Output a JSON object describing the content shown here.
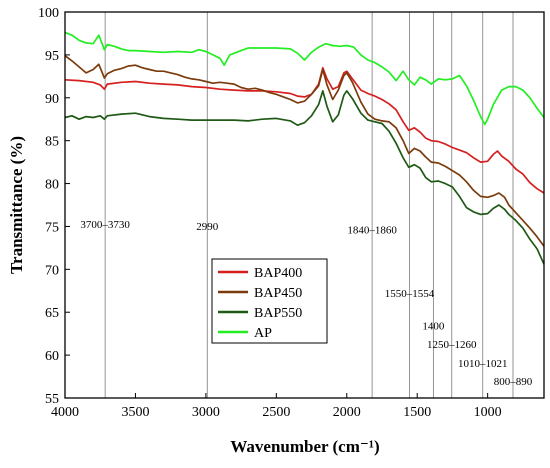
{
  "chart_data": {
    "type": "line",
    "xlabel": "Wavenumber (cm⁻¹)",
    "ylabel": "Transmittance (%)",
    "xlim": [
      4000,
      600
    ],
    "ylim": [
      55,
      100
    ],
    "x_reversed": true,
    "x_ticks": [
      4000,
      3500,
      3000,
      2500,
      2000,
      1500,
      1000
    ],
    "x_tick_labels": [
      "4000",
      "3500",
      "3000",
      "2500",
      "2000",
      "1500",
      "1000"
    ],
    "y_ticks": [
      55,
      60,
      65,
      70,
      75,
      80,
      85,
      90,
      95,
      100
    ],
    "y_tick_labels": [
      "55",
      "60",
      "65",
      "70",
      "75",
      "80",
      "85",
      "90",
      "95",
      "100"
    ],
    "grid": false,
    "legend_position": "lower-left",
    "reference_lines": [
      {
        "x": 3715,
        "label": "3700–3730",
        "label_y": 74.8
      },
      {
        "x": 2990,
        "label": "2990",
        "label_y": 74.6
      },
      {
        "x": 1820,
        "label": "1840–1860",
        "label_y": 74.2
      },
      {
        "x": 1555,
        "label": "1550–1554",
        "label_y": 66.8
      },
      {
        "x": 1385,
        "label": "1400",
        "label_y": 63.0
      },
      {
        "x": 1255,
        "label": "1250–1260",
        "label_y": 60.8
      },
      {
        "x": 1035,
        "label": "1010–1021",
        "label_y": 58.6
      },
      {
        "x": 820,
        "label": "800–890",
        "label_y": 56.5
      }
    ],
    "series": [
      {
        "name": "BAP400",
        "color": "#d62020",
        "points": [
          [
            4000,
            92.1
          ],
          [
            3900,
            92.0
          ],
          [
            3800,
            91.8
          ],
          [
            3750,
            91.5
          ],
          [
            3720,
            91.0
          ],
          [
            3700,
            91.6
          ],
          [
            3600,
            91.8
          ],
          [
            3500,
            91.9
          ],
          [
            3400,
            91.7
          ],
          [
            3300,
            91.6
          ],
          [
            3200,
            91.5
          ],
          [
            3100,
            91.3
          ],
          [
            3000,
            91.2
          ],
          [
            2900,
            91.0
          ],
          [
            2800,
            90.9
          ],
          [
            2700,
            90.8
          ],
          [
            2600,
            90.8
          ],
          [
            2500,
            90.7
          ],
          [
            2400,
            90.5
          ],
          [
            2350,
            90.2
          ],
          [
            2300,
            90.1
          ],
          [
            2250,
            90.4
          ],
          [
            2200,
            91.6
          ],
          [
            2170,
            93.5
          ],
          [
            2140,
            92.2
          ],
          [
            2100,
            91.0
          ],
          [
            2060,
            91.3
          ],
          [
            2020,
            92.9
          ],
          [
            2000,
            93.1
          ],
          [
            1960,
            92.2
          ],
          [
            1900,
            90.9
          ],
          [
            1850,
            90.5
          ],
          [
            1800,
            90.2
          ],
          [
            1750,
            89.8
          ],
          [
            1700,
            89.3
          ],
          [
            1650,
            88.6
          ],
          [
            1600,
            87.2
          ],
          [
            1560,
            86.2
          ],
          [
            1520,
            86.5
          ],
          [
            1480,
            86.0
          ],
          [
            1440,
            85.3
          ],
          [
            1400,
            85.0
          ],
          [
            1350,
            84.9
          ],
          [
            1300,
            84.6
          ],
          [
            1250,
            84.2
          ],
          [
            1200,
            83.9
          ],
          [
            1150,
            83.6
          ],
          [
            1100,
            83.0
          ],
          [
            1050,
            82.5
          ],
          [
            1000,
            82.6
          ],
          [
            960,
            83.4
          ],
          [
            930,
            83.8
          ],
          [
            900,
            83.2
          ],
          [
            850,
            82.6
          ],
          [
            800,
            81.7
          ],
          [
            750,
            81.1
          ],
          [
            700,
            80.1
          ],
          [
            650,
            79.4
          ],
          [
            600,
            78.9
          ]
        ]
      },
      {
        "name": "BAP450",
        "color": "#7b3b0c",
        "points": [
          [
            4000,
            94.9
          ],
          [
            3950,
            94.3
          ],
          [
            3900,
            93.6
          ],
          [
            3850,
            92.9
          ],
          [
            3800,
            93.3
          ],
          [
            3760,
            93.9
          ],
          [
            3720,
            92.3
          ],
          [
            3700,
            92.8
          ],
          [
            3650,
            93.2
          ],
          [
            3600,
            93.4
          ],
          [
            3550,
            93.7
          ],
          [
            3500,
            93.8
          ],
          [
            3450,
            93.5
          ],
          [
            3400,
            93.3
          ],
          [
            3350,
            93.1
          ],
          [
            3300,
            93.1
          ],
          [
            3250,
            92.9
          ],
          [
            3200,
            92.7
          ],
          [
            3150,
            92.4
          ],
          [
            3100,
            92.2
          ],
          [
            3050,
            92.1
          ],
          [
            3000,
            91.9
          ],
          [
            2950,
            91.7
          ],
          [
            2900,
            91.8
          ],
          [
            2850,
            91.7
          ],
          [
            2800,
            91.6
          ],
          [
            2750,
            91.2
          ],
          [
            2700,
            91.0
          ],
          [
            2650,
            91.1
          ],
          [
            2600,
            90.9
          ],
          [
            2550,
            90.6
          ],
          [
            2500,
            90.4
          ],
          [
            2450,
            90.1
          ],
          [
            2400,
            89.8
          ],
          [
            2350,
            89.4
          ],
          [
            2300,
            89.6
          ],
          [
            2250,
            90.4
          ],
          [
            2200,
            91.4
          ],
          [
            2170,
            93.3
          ],
          [
            2140,
            91.5
          ],
          [
            2100,
            89.8
          ],
          [
            2060,
            90.9
          ],
          [
            2020,
            92.6
          ],
          [
            2000,
            92.9
          ],
          [
            1960,
            91.8
          ],
          [
            1900,
            89.5
          ],
          [
            1850,
            88.1
          ],
          [
            1800,
            87.5
          ],
          [
            1750,
            87.3
          ],
          [
            1700,
            87.2
          ],
          [
            1650,
            86.5
          ],
          [
            1600,
            85.0
          ],
          [
            1560,
            83.5
          ],
          [
            1520,
            84.1
          ],
          [
            1480,
            83.8
          ],
          [
            1440,
            83.1
          ],
          [
            1400,
            82.5
          ],
          [
            1350,
            82.4
          ],
          [
            1300,
            82.0
          ],
          [
            1250,
            81.5
          ],
          [
            1200,
            81.0
          ],
          [
            1150,
            80.2
          ],
          [
            1100,
            79.2
          ],
          [
            1050,
            78.5
          ],
          [
            1000,
            78.4
          ],
          [
            960,
            78.6
          ],
          [
            920,
            78.9
          ],
          [
            880,
            78.4
          ],
          [
            850,
            77.5
          ],
          [
            800,
            76.6
          ],
          [
            750,
            75.7
          ],
          [
            700,
            74.8
          ],
          [
            650,
            73.8
          ],
          [
            600,
            72.7
          ]
        ]
      },
      {
        "name": "BAP550",
        "color": "#1e5a14",
        "points": [
          [
            4000,
            87.7
          ],
          [
            3950,
            87.9
          ],
          [
            3900,
            87.5
          ],
          [
            3850,
            87.8
          ],
          [
            3800,
            87.7
          ],
          [
            3750,
            87.9
          ],
          [
            3720,
            87.5
          ],
          [
            3700,
            87.9
          ],
          [
            3600,
            88.1
          ],
          [
            3500,
            88.2
          ],
          [
            3400,
            87.8
          ],
          [
            3300,
            87.6
          ],
          [
            3200,
            87.5
          ],
          [
            3100,
            87.4
          ],
          [
            3000,
            87.4
          ],
          [
            2900,
            87.4
          ],
          [
            2800,
            87.4
          ],
          [
            2700,
            87.3
          ],
          [
            2600,
            87.5
          ],
          [
            2500,
            87.6
          ],
          [
            2400,
            87.3
          ],
          [
            2350,
            86.8
          ],
          [
            2300,
            87.1
          ],
          [
            2250,
            87.9
          ],
          [
            2200,
            89.2
          ],
          [
            2170,
            90.8
          ],
          [
            2140,
            89.0
          ],
          [
            2100,
            87.2
          ],
          [
            2060,
            88.0
          ],
          [
            2020,
            90.3
          ],
          [
            2000,
            90.8
          ],
          [
            1960,
            89.9
          ],
          [
            1900,
            88.2
          ],
          [
            1850,
            87.4
          ],
          [
            1800,
            87.2
          ],
          [
            1750,
            87.0
          ],
          [
            1700,
            86.1
          ],
          [
            1650,
            84.7
          ],
          [
            1600,
            83.0
          ],
          [
            1560,
            81.9
          ],
          [
            1520,
            82.2
          ],
          [
            1480,
            81.8
          ],
          [
            1440,
            80.7
          ],
          [
            1400,
            80.2
          ],
          [
            1350,
            80.3
          ],
          [
            1300,
            80.0
          ],
          [
            1250,
            79.6
          ],
          [
            1200,
            78.5
          ],
          [
            1150,
            77.2
          ],
          [
            1100,
            76.7
          ],
          [
            1050,
            76.4
          ],
          [
            1000,
            76.5
          ],
          [
            960,
            77.1
          ],
          [
            920,
            77.5
          ],
          [
            880,
            77.0
          ],
          [
            850,
            76.4
          ],
          [
            800,
            75.7
          ],
          [
            750,
            74.8
          ],
          [
            700,
            73.5
          ],
          [
            650,
            72.4
          ],
          [
            600,
            70.6
          ]
        ]
      },
      {
        "name": "AP",
        "color": "#22ee22",
        "points": [
          [
            4000,
            97.6
          ],
          [
            3950,
            97.3
          ],
          [
            3900,
            96.7
          ],
          [
            3850,
            96.4
          ],
          [
            3800,
            96.3
          ],
          [
            3760,
            97.3
          ],
          [
            3720,
            95.6
          ],
          [
            3700,
            96.2
          ],
          [
            3650,
            96.0
          ],
          [
            3600,
            95.7
          ],
          [
            3550,
            95.5
          ],
          [
            3500,
            95.5
          ],
          [
            3400,
            95.4
          ],
          [
            3300,
            95.3
          ],
          [
            3200,
            95.4
          ],
          [
            3100,
            95.3
          ],
          [
            3050,
            95.6
          ],
          [
            3000,
            95.4
          ],
          [
            2950,
            95.0
          ],
          [
            2900,
            94.6
          ],
          [
            2870,
            93.8
          ],
          [
            2830,
            95.0
          ],
          [
            2750,
            95.5
          ],
          [
            2700,
            95.8
          ],
          [
            2600,
            95.8
          ],
          [
            2500,
            95.8
          ],
          [
            2400,
            95.7
          ],
          [
            2350,
            95.2
          ],
          [
            2300,
            94.4
          ],
          [
            2250,
            95.3
          ],
          [
            2200,
            95.9
          ],
          [
            2150,
            96.3
          ],
          [
            2100,
            96.1
          ],
          [
            2050,
            96.0
          ],
          [
            2000,
            96.1
          ],
          [
            1950,
            95.9
          ],
          [
            1900,
            95.0
          ],
          [
            1850,
            94.4
          ],
          [
            1800,
            94.1
          ],
          [
            1750,
            93.6
          ],
          [
            1700,
            93.0
          ],
          [
            1650,
            92.0
          ],
          [
            1600,
            93.1
          ],
          [
            1560,
            92.1
          ],
          [
            1520,
            91.5
          ],
          [
            1480,
            92.4
          ],
          [
            1440,
            92.1
          ],
          [
            1400,
            91.6
          ],
          [
            1350,
            92.2
          ],
          [
            1300,
            92.1
          ],
          [
            1250,
            92.2
          ],
          [
            1200,
            92.6
          ],
          [
            1150,
            91.4
          ],
          [
            1100,
            89.7
          ],
          [
            1050,
            87.8
          ],
          [
            1020,
            86.9
          ],
          [
            1000,
            87.5
          ],
          [
            960,
            89.2
          ],
          [
            900,
            90.9
          ],
          [
            850,
            91.3
          ],
          [
            800,
            91.3
          ],
          [
            750,
            90.9
          ],
          [
            700,
            90.0
          ],
          [
            650,
            88.8
          ],
          [
            600,
            87.7
          ]
        ]
      }
    ]
  }
}
